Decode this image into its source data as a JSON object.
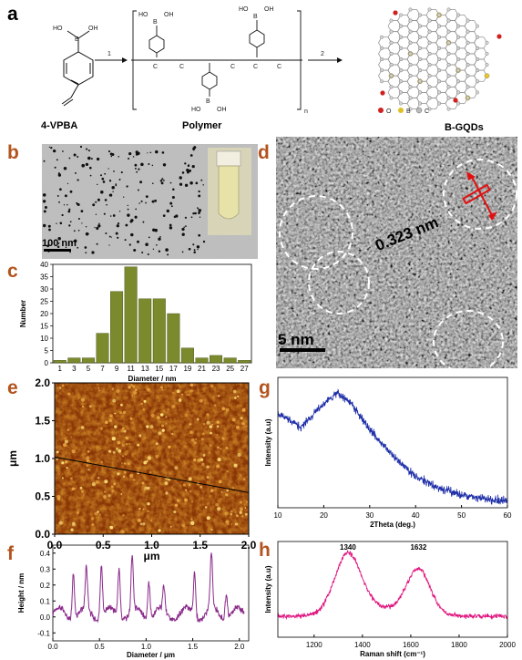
{
  "panels": {
    "a": {
      "letter": "a",
      "monomer_label": "4-VPBA",
      "polymer_label": "Polymer",
      "product_label": "B-GQDs",
      "step1": "1",
      "step2": "2",
      "repeat_n": "n",
      "legend": [
        "O",
        "B",
        "C"
      ],
      "atom_labels": {
        "B": "B",
        "OH": "OH",
        "HO": "HO",
        "C": "C"
      }
    },
    "b": {
      "letter": "b",
      "scale": "100 nm"
    },
    "c": {
      "letter": "c"
    },
    "d": {
      "letter": "d",
      "lattice": "0.323 nm",
      "scale": "5 nm"
    },
    "e": {
      "letter": "e"
    },
    "f": {
      "letter": "f"
    },
    "g": {
      "letter": "g"
    },
    "h": {
      "letter": "h"
    }
  },
  "chart_data": [
    {
      "panel": "c",
      "type": "bar",
      "categories": [
        1,
        3,
        5,
        7,
        9,
        11,
        13,
        15,
        17,
        19,
        21,
        23,
        25,
        27
      ],
      "values": [
        1,
        2,
        2,
        12,
        29,
        39,
        26,
        26,
        20,
        6,
        2,
        3,
        2,
        1
      ],
      "xlabel": "Diameter / nm",
      "ylabel": "Number",
      "ylim": [
        0,
        40
      ],
      "yticks": [
        0,
        5,
        10,
        15,
        20,
        25,
        30,
        35,
        40
      ],
      "color": "#7a8a2c"
    },
    {
      "panel": "e",
      "type": "heatmap",
      "xlabel": "μm",
      "ylabel": "μm",
      "xlim": [
        0,
        2.0
      ],
      "ylim": [
        0,
        2.0
      ],
      "xticks": [
        "0.0",
        "0.5",
        "1.0",
        "1.5",
        "2.0"
      ],
      "yticks": [
        "0.0",
        "0.5",
        "1.0",
        "1.5",
        "2.0"
      ],
      "line_profile": {
        "x": [
          0,
          2.0
        ],
        "y": [
          1.02,
          0.55
        ]
      },
      "color": "#a84a0c"
    },
    {
      "panel": "f",
      "type": "line",
      "xlabel": "Diameter / μm",
      "ylabel": "Height / nm",
      "xlim": [
        0,
        2.1
      ],
      "ylim": [
        -0.15,
        0.45
      ],
      "xticks": [
        "0.0",
        "0.5",
        "1.0",
        "1.5",
        "2.0"
      ],
      "yticks": [
        "-0.1",
        "0.0",
        "0.1",
        "0.2",
        "0.3",
        "0.4"
      ],
      "peaks": [
        {
          "x": 0.22,
          "y": 0.3
        },
        {
          "x": 0.36,
          "y": 0.28
        },
        {
          "x": 0.52,
          "y": 0.35
        },
        {
          "x": 0.71,
          "y": 0.33
        },
        {
          "x": 0.85,
          "y": 0.36
        },
        {
          "x": 1.03,
          "y": 0.26
        },
        {
          "x": 1.19,
          "y": 0.17
        },
        {
          "x": 1.52,
          "y": 0.29
        },
        {
          "x": 1.7,
          "y": 0.38
        },
        {
          "x": 1.86,
          "y": 0.18
        }
      ],
      "color": "#8a2a8a"
    },
    {
      "panel": "g",
      "type": "line",
      "xlabel": "2Theta (deg.)",
      "ylabel": "Intensity (a.u)",
      "xlim": [
        10,
        60
      ],
      "xticks": [
        10,
        20,
        30,
        40,
        50,
        60
      ],
      "x": [
        10,
        15,
        20,
        23,
        26,
        30,
        35,
        40,
        45,
        50,
        55,
        60
      ],
      "y": [
        0.72,
        0.62,
        0.8,
        0.88,
        0.8,
        0.6,
        0.4,
        0.24,
        0.15,
        0.1,
        0.07,
        0.05
      ],
      "color": "#1f2fa8"
    },
    {
      "panel": "h",
      "type": "line",
      "xlabel": "Raman shift (cm⁻¹)",
      "ylabel": "Intensity (a.u)",
      "xlim": [
        1050,
        2000
      ],
      "xticks": [
        1200,
        1400,
        1600,
        1800,
        2000
      ],
      "peaks": [
        {
          "x": 1340,
          "label": "1340"
        },
        {
          "x": 1632,
          "label": "1632"
        }
      ],
      "color": "#e0157f"
    }
  ]
}
